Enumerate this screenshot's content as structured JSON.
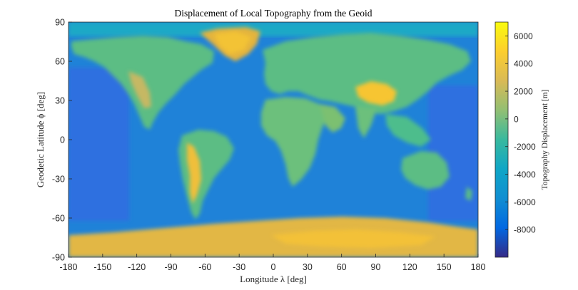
{
  "chart_data": {
    "type": "heatmap",
    "title": "Displacement of Local Topography from the Geoid",
    "xlabel": "Longitude λ [deg]",
    "ylabel": "Geodetic Latitude ϕ [deg]",
    "xlim": [
      -180,
      180
    ],
    "ylim": [
      -90,
      90
    ],
    "x_ticks": [
      -180,
      -150,
      -120,
      -90,
      -60,
      -30,
      0,
      30,
      60,
      90,
      120,
      150,
      180
    ],
    "y_ticks": [
      90,
      60,
      30,
      0,
      -30,
      -60,
      -90
    ],
    "x_tick_labels": [
      "-180",
      "-150",
      "-120",
      "-90",
      "-60",
      "-30",
      "0",
      "30",
      "60",
      "90",
      "120",
      "150",
      "180"
    ],
    "y_tick_labels": [
      "90",
      "60",
      "30",
      "0",
      "-30",
      "-60",
      "-90"
    ],
    "colorbar": {
      "label": "Topography Displacement [m]",
      "range": [
        -10000,
        7000
      ],
      "ticks": [
        6000,
        4000,
        2000,
        0,
        -2000,
        -4000,
        -6000,
        -8000
      ],
      "tick_labels": [
        "6000",
        "4000",
        "2000",
        "0",
        "-2000",
        "-4000",
        "-6000",
        "-8000"
      ],
      "colormap": "parula"
    },
    "features": [
      {
        "name": "Greenland",
        "lon": -42,
        "lat": 72,
        "value": 3000
      },
      {
        "name": "Antarctica",
        "lon": 60,
        "lat": -80,
        "value": 3200
      },
      {
        "name": "Tibetan Plateau",
        "lon": 88,
        "lat": 33,
        "value": 4800
      },
      {
        "name": "Andes",
        "lon": -70,
        "lat": -20,
        "value": 3800
      },
      {
        "name": "Rocky Mountains",
        "lon": -110,
        "lat": 42,
        "value": 2200
      },
      {
        "name": "Pacific Ocean",
        "lon": -150,
        "lat": 0,
        "value": -4500
      },
      {
        "name": "Indian Ocean",
        "lon": 75,
        "lat": -25,
        "value": -4200
      },
      {
        "name": "Atlantic Ocean",
        "lon": -30,
        "lat": 10,
        "value": -4500
      }
    ]
  },
  "colors": {
    "parula_low": "#352a87",
    "parula_mid": "#15b1b4",
    "parula_high": "#f9fb0e"
  }
}
